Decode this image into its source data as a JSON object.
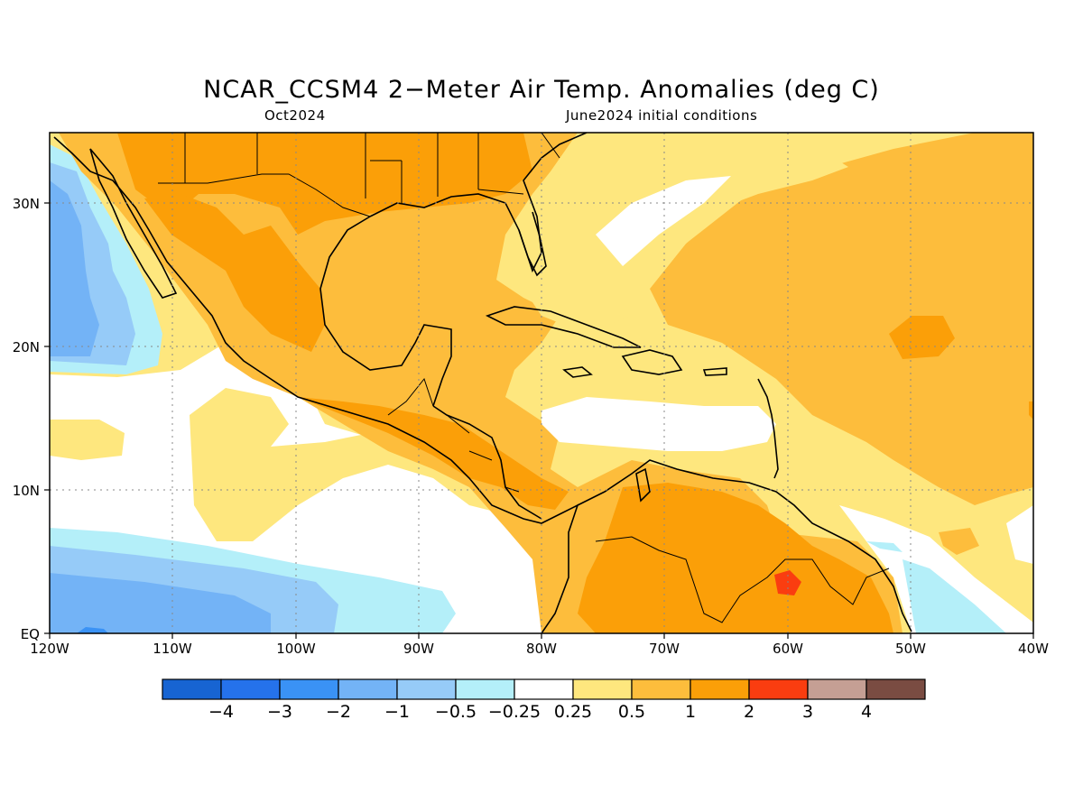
{
  "title": "NCAR_CCSM4 2−Meter Air Temp. Anomalies (deg C)",
  "subtitle_left": "Oct2024",
  "subtitle_right": "June2024 initial conditions",
  "lon_ticks": [
    "120W",
    "110W",
    "100W",
    "90W",
    "80W",
    "70W",
    "60W",
    "50W",
    "40W"
  ],
  "lat_ticks": [
    "30N",
    "20N",
    "10N",
    "EQ"
  ],
  "colorbar": {
    "colors": [
      "#1764d2",
      "#2572eb",
      "#3a92f5",
      "#73b3f6",
      "#96cbf8",
      "#b4eff9",
      "#ffffff",
      "#fee77e",
      "#fdbd3c",
      "#fb9f08",
      "#fa3d10",
      "#c59f94",
      "#7a4c42"
    ],
    "labels": [
      "−4",
      "−3",
      "−2",
      "−1",
      "−0.5",
      "−0.25",
      "0.25",
      "0.5",
      "1",
      "2",
      "3",
      "4"
    ]
  }
}
